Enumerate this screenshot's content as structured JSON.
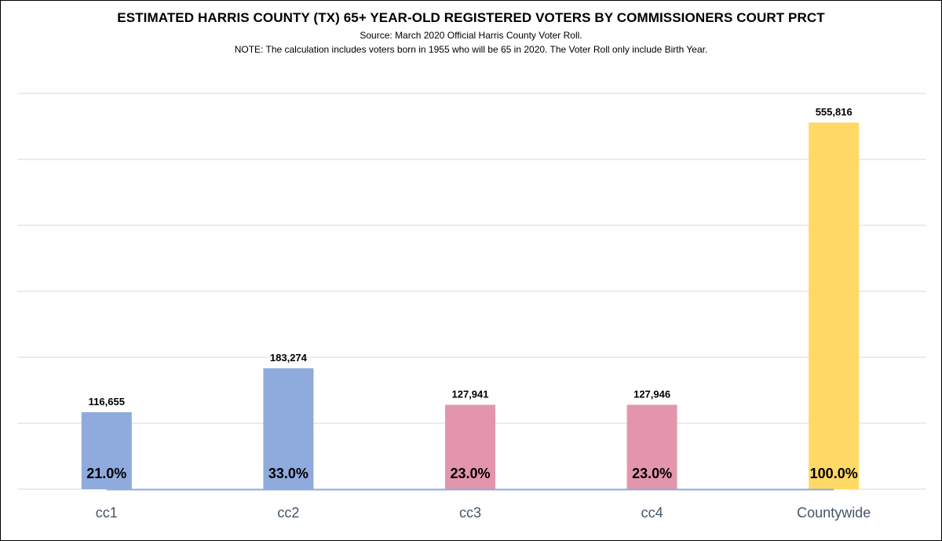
{
  "chart_data": {
    "type": "bar",
    "title": "ESTIMATED HARRIS COUNTY (TX) 65+ YEAR-OLD REGISTERED VOTERS BY COMMISSIONERS COURT PRCT",
    "subtitle": "Source: March 2020 Official Harris County Voter Roll.",
    "note": "NOTE: The calculation includes voters born in 1955 who will be 65 in 2020. The Voter Roll only include Birth Year.",
    "categories": [
      "cc1",
      "cc2",
      "cc3",
      "cc4",
      "Countywide"
    ],
    "values": [
      116655,
      183274,
      127941,
      127946,
      555816
    ],
    "value_labels": [
      "116,655",
      "183,274",
      "127,941",
      "127,946",
      "555,816"
    ],
    "percent_labels": [
      "21.0%",
      "33.0%",
      "23.0%",
      "23.0%",
      "100.0%"
    ],
    "colors": [
      "#8faadc",
      "#8faadc",
      "#e396ab",
      "#e396ab",
      "#ffd966"
    ],
    "gridline_color": "#d9d9d9",
    "line_color": "#8faadc",
    "ylim": [
      0,
      600000
    ],
    "grid": true,
    "legend": "none",
    "xlabel": "",
    "ylabel": ""
  }
}
